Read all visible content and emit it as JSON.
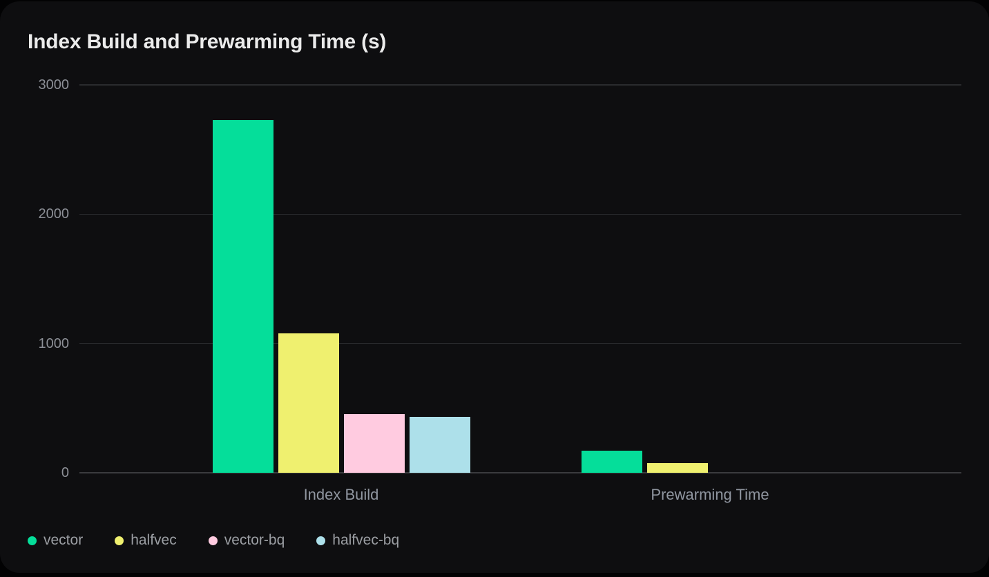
{
  "chart": {
    "title": "Index Build and Prewarming Time (s)"
  },
  "colors": {
    "page_bg": "#020203",
    "card_bg": "#0e0e10",
    "grid_line": "#2a2b2e",
    "axis_line": "#3a3b3e",
    "title_text": "#ebebeb",
    "tick_text": "#8c8f96",
    "category_text": "#9096a0",
    "legend_text": "#9b9ea3"
  },
  "chart_data": {
    "type": "bar",
    "title": "Index Build and Prewarming Time (s)",
    "categories": [
      "Index Build",
      "Prewarming Time"
    ],
    "series": [
      {
        "name": "vector",
        "color": "#05de9a",
        "values": [
          2730,
          170
        ]
      },
      {
        "name": "halfvec",
        "color": "#eff06f",
        "values": [
          1080,
          75
        ]
      },
      {
        "name": "vector-bq",
        "color": "#ffcbe0",
        "values": [
          455,
          0
        ]
      },
      {
        "name": "halfvec-bq",
        "color": "#ade0ea",
        "values": [
          430,
          0
        ]
      }
    ],
    "yticks": [
      0,
      1000,
      2000,
      3000
    ],
    "ylim": [
      0,
      3000
    ],
    "xlabel": "",
    "ylabel": "",
    "grid": "horizontal",
    "legend_position": "bottom-left"
  }
}
